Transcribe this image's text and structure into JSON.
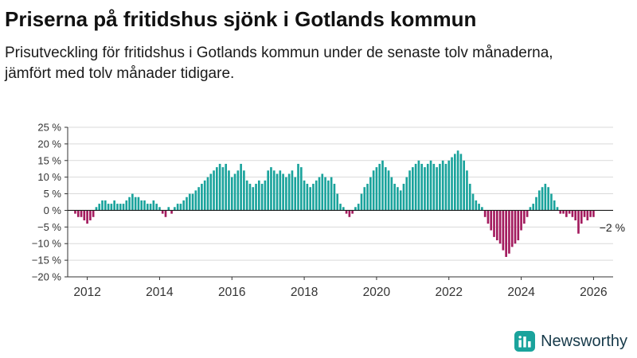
{
  "header": {
    "title": "Priserna på fritidshus sjönk i Gotlands kommun",
    "subtitle": "Prisutveckling för fritidshus i Gotlands kommun under de senaste tolv månaderna, jämfört med tolv månader tidigare."
  },
  "chart_data": {
    "type": "bar",
    "title": "Prisutveckling för fritidshus i Gotlands kommun",
    "unit": "%",
    "x_start_month": "2011-07",
    "x_domain_months": 181,
    "values": [
      0,
      0,
      -1,
      -2,
      -2,
      -3,
      -4,
      -3,
      -2,
      1,
      2,
      3,
      3,
      2,
      2,
      3,
      2,
      2,
      2,
      3,
      4,
      5,
      4,
      4,
      3,
      3,
      2,
      2,
      3,
      2,
      1,
      -1,
      -2,
      1,
      -1,
      1,
      2,
      2,
      3,
      4,
      5,
      5,
      6,
      7,
      8,
      9,
      10,
      11,
      12,
      13,
      14,
      13,
      14,
      12,
      10,
      11,
      12,
      14,
      12,
      9,
      8,
      7,
      8,
      9,
      8,
      9,
      12,
      13,
      12,
      11,
      12,
      11,
      10,
      11,
      12,
      10,
      14,
      13,
      9,
      8,
      7,
      8,
      9,
      10,
      11,
      10,
      9,
      10,
      8,
      5,
      2,
      1,
      -1,
      -2,
      -1,
      1,
      2,
      5,
      7,
      8,
      10,
      12,
      13,
      14,
      15,
      13,
      12,
      10,
      8,
      7,
      6,
      8,
      10,
      12,
      13,
      14,
      15,
      14,
      13,
      14,
      15,
      14,
      13,
      14,
      15,
      14,
      15,
      16,
      17,
      18,
      17,
      15,
      12,
      8,
      5,
      3,
      2,
      1,
      -2,
      -4,
      -6,
      -8,
      -9,
      -10,
      -12,
      -14,
      -13,
      -11,
      -10,
      -9,
      -6,
      -4,
      -2,
      1,
      2,
      4,
      6,
      7,
      8,
      7,
      5,
      3,
      1,
      -1,
      -1,
      -2,
      -1,
      -2,
      -3,
      -7,
      -4,
      -2,
      -3,
      -2,
      -2
    ],
    "ylim": [
      -20,
      25
    ],
    "yticks": [
      {
        "value": 25,
        "label": "25 %"
      },
      {
        "value": 20,
        "label": "20 %"
      },
      {
        "value": 15,
        "label": "15 %"
      },
      {
        "value": 10,
        "label": "10 %"
      },
      {
        "value": 5,
        "label": "5 %"
      },
      {
        "value": 0,
        "label": "0 %"
      },
      {
        "value": -5,
        "label": "−5 %"
      },
      {
        "value": -10,
        "label": "−10 %"
      },
      {
        "value": -15,
        "label": "−15 %"
      },
      {
        "value": -20,
        "label": "−20 %"
      }
    ],
    "xticks": [
      {
        "label": "2012",
        "month_index": 6
      },
      {
        "label": "2014",
        "month_index": 30
      },
      {
        "label": "2016",
        "month_index": 54
      },
      {
        "label": "2018",
        "month_index": 78
      },
      {
        "label": "2020",
        "month_index": 102
      },
      {
        "label": "2022",
        "month_index": 126
      },
      {
        "label": "2024",
        "month_index": 150
      },
      {
        "label": "2026",
        "month_index": 174
      }
    ],
    "annotation": {
      "text": "−2 %",
      "value": -2
    },
    "positive_color": "#1aa39c",
    "negative_color": "#a31b5e",
    "grid_color": "#d9d9d9",
    "axis_color": "#333333",
    "legend": "none",
    "grid": "horizontal"
  },
  "footer": {
    "brand": "Newsworthy"
  }
}
